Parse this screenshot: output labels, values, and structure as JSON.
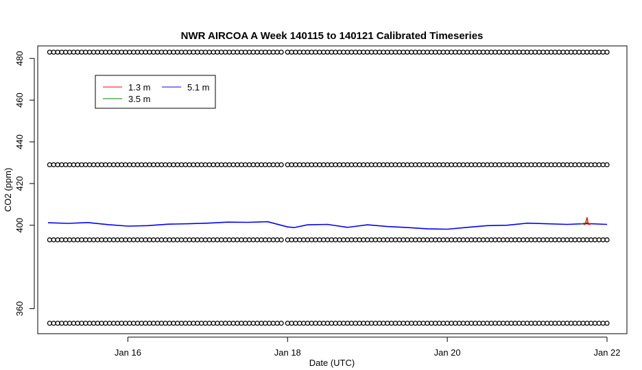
{
  "chart_data": {
    "type": "line",
    "title": "NWR AIRCOA A  Week 140115 to 140121  Calibrated Timeseries",
    "xlabel": "Date (UTC)",
    "ylabel": "CO2 (ppm)",
    "x_range": [
      "2014-01-15T00:00",
      "2014-01-22T00:00"
    ],
    "ylim": [
      348,
      486
    ],
    "x_ticks": [
      {
        "value": "2014-01-16",
        "label": "Jan 16"
      },
      {
        "value": "2014-01-18",
        "label": "Jan 18"
      },
      {
        "value": "2014-01-20",
        "label": "Jan 20"
      },
      {
        "value": "2014-01-22",
        "label": "Jan 22"
      }
    ],
    "y_ticks": [
      360,
      400,
      420,
      440,
      460,
      480
    ],
    "grid": false,
    "legend_position": "top-left",
    "series": [
      {
        "name": "1.3 m",
        "color": "#ff0000",
        "points": [
          [
            "2014-01-21T17:00",
            400.2
          ],
          [
            "2014-01-21T17:30",
            400.6
          ],
          [
            "2014-01-21T18:00",
            403.8
          ],
          [
            "2014-01-21T18:20",
            400.5
          ],
          [
            "2014-01-21T19:00",
            400.4
          ]
        ]
      },
      {
        "name": "3.5 m",
        "color": "#008000",
        "points": [
          [
            "2014-01-21T16:00",
            400.5
          ],
          [
            "2014-01-21T17:00",
            400.9
          ],
          [
            "2014-01-21T18:00",
            401.2
          ],
          [
            "2014-01-21T19:00",
            400.6
          ]
        ]
      },
      {
        "name": "5.1 m",
        "color": "#0000ff",
        "points": [
          [
            "2014-01-15T00:00",
            401.2
          ],
          [
            "2014-01-15T06:00",
            400.9
          ],
          [
            "2014-01-15T12:00",
            401.3
          ],
          [
            "2014-01-15T18:00",
            400.3
          ],
          [
            "2014-01-16T00:00",
            399.6
          ],
          [
            "2014-01-16T06:00",
            399.8
          ],
          [
            "2014-01-16T12:00",
            400.5
          ],
          [
            "2014-01-16T18:00",
            400.7
          ],
          [
            "2014-01-17T00:00",
            401.0
          ],
          [
            "2014-01-17T06:00",
            401.5
          ],
          [
            "2014-01-17T12:00",
            401.4
          ],
          [
            "2014-01-17T18:00",
            401.7
          ],
          [
            "2014-01-18T00:00",
            399.2
          ],
          [
            "2014-01-18T02:00",
            398.9
          ],
          [
            "2014-01-18T06:00",
            400.2
          ],
          [
            "2014-01-18T12:00",
            400.4
          ],
          [
            "2014-01-18T18:00",
            399.0
          ],
          [
            "2014-01-19T00:00",
            400.2
          ],
          [
            "2014-01-19T06:00",
            399.4
          ],
          [
            "2014-01-19T12:00",
            398.9
          ],
          [
            "2014-01-19T18:00",
            398.3
          ],
          [
            "2014-01-20T00:00",
            398.1
          ],
          [
            "2014-01-20T06:00",
            399.0
          ],
          [
            "2014-01-20T12:00",
            399.8
          ],
          [
            "2014-01-20T18:00",
            400.0
          ],
          [
            "2014-01-21T00:00",
            401.0
          ],
          [
            "2014-01-21T06:00",
            400.7
          ],
          [
            "2014-01-21T12:00",
            400.4
          ],
          [
            "2014-01-21T18:00",
            400.8
          ],
          [
            "2014-01-22T00:00",
            400.4
          ]
        ]
      }
    ],
    "markers": {
      "symbol": "open circle",
      "rows": [
        {
          "y": 483,
          "segments": [
            [
              "2014-01-15T00:30",
              "2014-01-17T23:00"
            ],
            [
              "2014-01-18T00:00",
              "2014-01-22T00:00"
            ]
          ]
        },
        {
          "y": 429,
          "segments": [
            [
              "2014-01-15T00:30",
              "2014-01-17T23:00"
            ],
            [
              "2014-01-18T00:00",
              "2014-01-22T00:00"
            ]
          ]
        },
        {
          "y": 393,
          "segments": [
            [
              "2014-01-15T00:30",
              "2014-01-17T23:00"
            ],
            [
              "2014-01-18T00:00",
              "2014-01-22T00:00"
            ]
          ]
        },
        {
          "y": 353,
          "segments": [
            [
              "2014-01-15T00:30",
              "2014-01-17T23:00"
            ],
            [
              "2014-01-18T00:00",
              "2014-01-22T00:00"
            ]
          ]
        }
      ],
      "interval_hours": 1.2
    }
  }
}
